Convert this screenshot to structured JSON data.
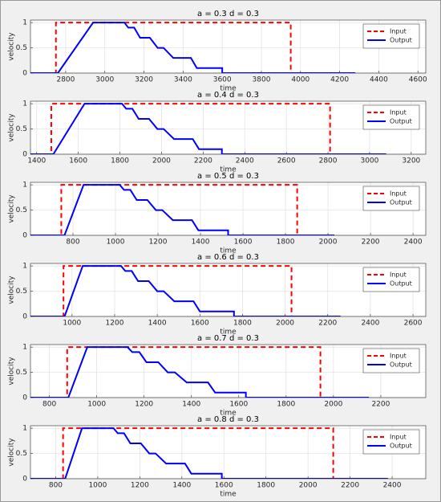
{
  "chart_data": [
    {
      "type": "line",
      "title": "a = 0.3  d = 0.3",
      "xlabel": "time",
      "ylabel": "velocity",
      "xlim": [
        2620,
        4640
      ],
      "xticks": [
        2800,
        3000,
        3200,
        3400,
        3600,
        3800,
        4000,
        4200,
        4400,
        4600
      ],
      "ylim": [
        0,
        1.05
      ],
      "yticks": [
        0,
        0.5,
        1
      ],
      "grid": true,
      "legend": "northeast",
      "series": [
        {
          "name": "Input",
          "color": "#ff0000",
          "linestyle": "--",
          "x": [
            2620,
            2750,
            2750,
            3950,
            3950
          ],
          "values": [
            0,
            0,
            1,
            1,
            0
          ]
        },
        {
          "name": "Output",
          "color": "#0000ff",
          "linestyle": "-",
          "x": [
            2620,
            2760,
            2940,
            3100,
            3120,
            3150,
            3180,
            3230,
            3270,
            3300,
            3350,
            3440,
            3470,
            3600,
            3600,
            4280
          ],
          "values": [
            0,
            0,
            1,
            1,
            0.9,
            0.9,
            0.7,
            0.7,
            0.5,
            0.5,
            0.3,
            0.3,
            0.1,
            0.1,
            0,
            0
          ]
        }
      ]
    },
    {
      "type": "line",
      "title": "a = 0.4  d = 0.3",
      "xlabel": "time",
      "ylabel": "velocity",
      "xlim": [
        1370,
        3270
      ],
      "xticks": [
        1400,
        1600,
        1800,
        2000,
        2200,
        2400,
        2600,
        2800,
        3000,
        3200
      ],
      "ylim": [
        0,
        1.05
      ],
      "yticks": [
        0,
        0.5,
        1
      ],
      "grid": true,
      "legend": "northeast",
      "series": [
        {
          "name": "Input",
          "color": "#ff0000",
          "linestyle": "--",
          "x": [
            1370,
            1470,
            1470,
            2810,
            2810
          ],
          "values": [
            0,
            0,
            1,
            1,
            0
          ]
        },
        {
          "name": "Output",
          "color": "#0000ff",
          "linestyle": "-",
          "x": [
            1370,
            1480,
            1630,
            1810,
            1830,
            1860,
            1890,
            1940,
            1980,
            2010,
            2060,
            2150,
            2180,
            2290,
            2290,
            3080
          ],
          "values": [
            0,
            0,
            1,
            1,
            0.9,
            0.9,
            0.7,
            0.7,
            0.5,
            0.5,
            0.3,
            0.3,
            0.1,
            0.1,
            0,
            0
          ]
        }
      ]
    },
    {
      "type": "line",
      "title": "a = 0.5  d = 0.3",
      "xlabel": "time",
      "ylabel": "velocity",
      "xlim": [
        600,
        2460
      ],
      "xticks": [
        800,
        1000,
        1200,
        1400,
        1600,
        1800,
        2000,
        2200,
        2400
      ],
      "ylim": [
        0,
        1.05
      ],
      "yticks": [
        0,
        0.5,
        1
      ],
      "grid": true,
      "legend": "northeast",
      "series": [
        {
          "name": "Input",
          "color": "#ff0000",
          "linestyle": "--",
          "x": [
            600,
            745,
            745,
            1855,
            1855
          ],
          "values": [
            0,
            0,
            1,
            1,
            0
          ]
        },
        {
          "name": "Output",
          "color": "#0000ff",
          "linestyle": "-",
          "x": [
            600,
            760,
            850,
            1020,
            1040,
            1070,
            1100,
            1150,
            1190,
            1220,
            1270,
            1360,
            1390,
            1530,
            1530,
            2030
          ],
          "values": [
            0,
            0,
            1,
            1,
            0.9,
            0.9,
            0.7,
            0.7,
            0.5,
            0.5,
            0.3,
            0.3,
            0.1,
            0.1,
            0,
            0
          ]
        }
      ]
    },
    {
      "type": "line",
      "title": "a = 0.6  d = 0.3",
      "xlabel": "time",
      "ylabel": "velocity",
      "xlim": [
        805,
        2660
      ],
      "xticks": [
        1000,
        1200,
        1400,
        1600,
        1800,
        2000,
        2200,
        2400,
        2600
      ],
      "ylim": [
        0,
        1.05
      ],
      "yticks": [
        0,
        0.5,
        1
      ],
      "grid": true,
      "legend": "northeast",
      "series": [
        {
          "name": "Input",
          "color": "#ff0000",
          "linestyle": "--",
          "x": [
            805,
            960,
            960,
            2030,
            2030
          ],
          "values": [
            0,
            0,
            1,
            1,
            0
          ]
        },
        {
          "name": "Output",
          "color": "#0000ff",
          "linestyle": "-",
          "x": [
            805,
            965,
            1050,
            1230,
            1250,
            1280,
            1310,
            1360,
            1400,
            1430,
            1480,
            1570,
            1600,
            1760,
            1760,
            2260
          ],
          "values": [
            0,
            0,
            1,
            1,
            0.9,
            0.9,
            0.7,
            0.7,
            0.5,
            0.5,
            0.3,
            0.3,
            0.1,
            0.1,
            0,
            0
          ]
        }
      ]
    },
    {
      "type": "line",
      "title": "a = 0.7  d = 0.3",
      "xlabel": "time",
      "ylabel": "velocity",
      "xlim": [
        720,
        2390
      ],
      "xticks": [
        800,
        1000,
        1200,
        1400,
        1600,
        1800,
        2000,
        2200
      ],
      "ylim": [
        0,
        1.05
      ],
      "yticks": [
        0,
        0.5,
        1
      ],
      "grid": true,
      "legend": "northeast",
      "series": [
        {
          "name": "Input",
          "color": "#ff0000",
          "linestyle": "--",
          "x": [
            720,
            875,
            875,
            1945,
            1945
          ],
          "values": [
            0,
            0,
            1,
            1,
            0
          ]
        },
        {
          "name": "Output",
          "color": "#0000ff",
          "linestyle": "-",
          "x": [
            720,
            880,
            960,
            1130,
            1150,
            1180,
            1210,
            1260,
            1300,
            1330,
            1380,
            1470,
            1500,
            1630,
            1630,
            2150
          ],
          "values": [
            0,
            0,
            1,
            1,
            0.9,
            0.9,
            0.7,
            0.7,
            0.5,
            0.5,
            0.3,
            0.3,
            0.1,
            0.1,
            0,
            0
          ]
        }
      ]
    },
    {
      "type": "line",
      "title": "a = 0.8  d = 0.3",
      "xlabel": "time",
      "ylabel": "velocity",
      "xlim": [
        680,
        2560
      ],
      "xticks": [
        800,
        1000,
        1200,
        1400,
        1600,
        1800,
        2000,
        2200,
        2400
      ],
      "ylim": [
        0,
        1.05
      ],
      "yticks": [
        0,
        0.5,
        1
      ],
      "grid": true,
      "legend": "northeast",
      "series": [
        {
          "name": "Input",
          "color": "#ff0000",
          "linestyle": "--",
          "x": [
            680,
            835,
            835,
            2120,
            2120
          ],
          "values": [
            0,
            0,
            1,
            1,
            0
          ]
        },
        {
          "name": "Output",
          "color": "#0000ff",
          "linestyle": "-",
          "x": [
            680,
            845,
            925,
            1075,
            1095,
            1125,
            1155,
            1205,
            1245,
            1275,
            1325,
            1415,
            1445,
            1590,
            1590,
            2380
          ],
          "values": [
            0,
            0,
            1,
            1,
            0.9,
            0.9,
            0.7,
            0.7,
            0.5,
            0.5,
            0.3,
            0.3,
            0.1,
            0.1,
            0,
            0
          ]
        }
      ]
    }
  ]
}
